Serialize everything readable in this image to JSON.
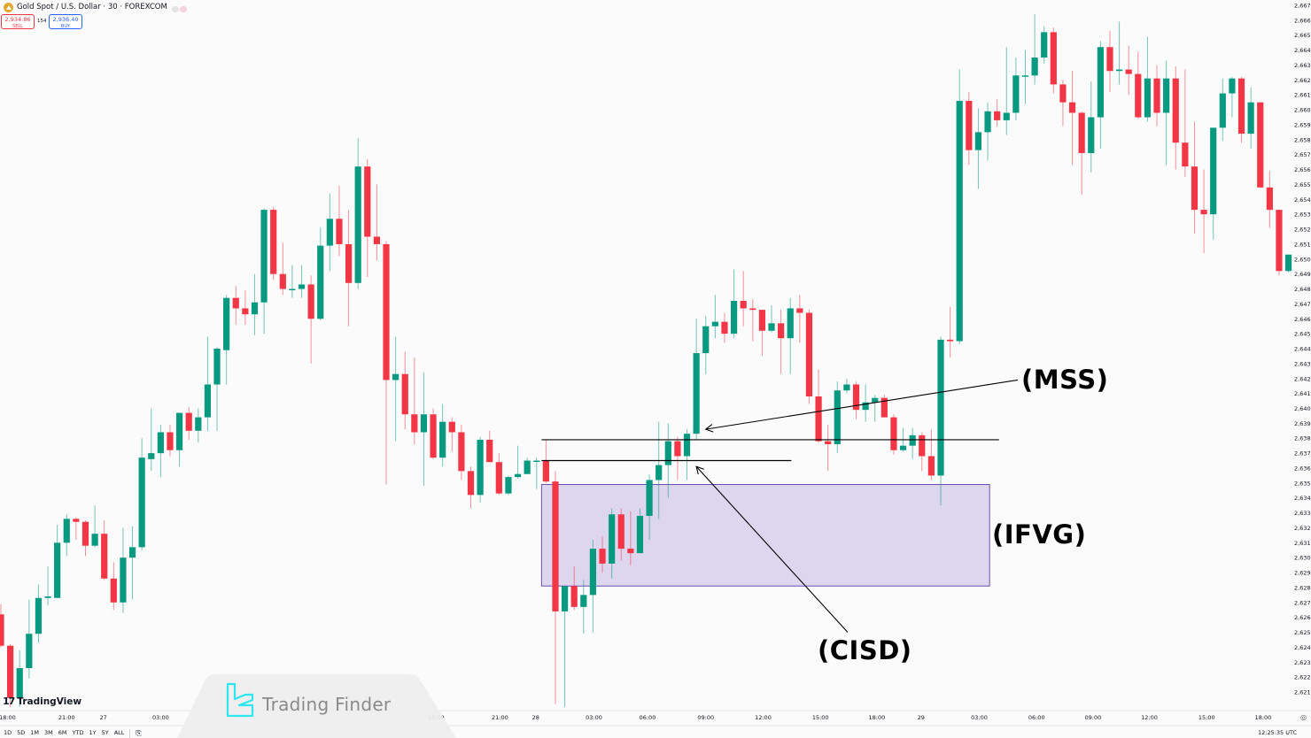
{
  "header": {
    "symbol_icon": "gold-coin-icon",
    "title": "Gold Spot / U.S. Dollar · 30 · FOREXCOM",
    "sell_price": "2,934.86",
    "sell_label": "SELL",
    "spread": "154",
    "buy_price": "2,936.40",
    "buy_label": "BUY"
  },
  "chart_data": {
    "type": "candlestick",
    "interval": "30",
    "colors": {
      "up": "#089981",
      "down": "#F23645",
      "zone_fill": "#dcd3ee",
      "zone_border": "#6a4fb0"
    },
    "ylim": [
      2620.6,
      2667.3
    ],
    "price_ticks": [
      "2,667.0",
      "2,666.0",
      "2,665.0",
      "2,664.0",
      "2,663.0",
      "2,662.0",
      "2,661.0",
      "2,660.0",
      "2,659.0",
      "2,658.0",
      "2,657.0",
      "2,656.0",
      "2,655.0",
      "2,654.0",
      "2,653.0",
      "2,652.0",
      "2,651.0",
      "2,650.0",
      "2,649.0",
      "2,648.0",
      "2,647.0",
      "2,646.0",
      "2,645.0",
      "2,644.0",
      "2,643.0",
      "2,642.0",
      "2,641.0",
      "2,640.0",
      "2,639.0",
      "2,638.0",
      "2,637.0",
      "2,636.0",
      "2,635.0",
      "2,634.0",
      "2,633.0",
      "2,632.0",
      "2,631.0",
      "2,630.0",
      "2,629.0",
      "2,628.0",
      "2,627.0",
      "2,626.0",
      "2,625.0",
      "2,624.0",
      "2,623.0",
      "2,622.0",
      "2,621.0"
    ],
    "time_ticks": [
      {
        "label": "18:00",
        "bar": 0.7
      },
      {
        "label": "21:00",
        "bar": 7
      },
      {
        "label": "27",
        "bar": 10.9
      },
      {
        "label": "03:00",
        "bar": 17
      },
      {
        "label": "18:00",
        "bar": 46.3
      },
      {
        "label": "21:00",
        "bar": 53.1
      },
      {
        "label": "28",
        "bar": 56.9
      },
      {
        "label": "03:00",
        "bar": 63.1
      },
      {
        "label": "06:00",
        "bar": 68.8
      },
      {
        "label": "09:00",
        "bar": 75
      },
      {
        "label": "12:00",
        "bar": 81.1
      },
      {
        "label": "15:00",
        "bar": 87.2
      },
      {
        "label": "18:00",
        "bar": 93.2
      },
      {
        "label": "29",
        "bar": 97.9
      },
      {
        "label": "03:00",
        "bar": 104.1
      },
      {
        "label": "06:00",
        "bar": 110.2
      },
      {
        "label": "09:00",
        "bar": 116.2
      },
      {
        "label": "12:00",
        "bar": 122.2
      },
      {
        "label": "15:00",
        "bar": 128.3
      },
      {
        "label": "18:00",
        "bar": 134.3
      }
    ],
    "ohlc_fields": [
      "open",
      "high",
      "low",
      "close"
    ],
    "candles": [
      [
        2626.2,
        2626.9,
        2624.0,
        2624.1
      ],
      [
        2624.1,
        2624.2,
        2620.0,
        2620.6
      ],
      [
        2620.6,
        2623.8,
        2620.0,
        2622.6
      ],
      [
        2622.6,
        2627.2,
        2621.9,
        2624.9
      ],
      [
        2624.9,
        2628.2,
        2624.3,
        2627.3
      ],
      [
        2627.3,
        2629.4,
        2626.8,
        2627.4
      ],
      [
        2627.3,
        2632.2,
        2627.3,
        2631.0
      ],
      [
        2631.0,
        2632.9,
        2630.1,
        2632.6
      ],
      [
        2632.6,
        2632.7,
        2631.2,
        2632.4
      ],
      [
        2632.4,
        2632.5,
        2630.1,
        2630.8
      ],
      [
        2630.8,
        2633.5,
        2630.7,
        2631.6
      ],
      [
        2631.6,
        2632.5,
        2628.5,
        2628.6
      ],
      [
        2628.6,
        2629.7,
        2626.5,
        2627.0
      ],
      [
        2627.0,
        2632.0,
        2626.3,
        2630.0
      ],
      [
        2630.0,
        2632.1,
        2627.2,
        2630.7
      ],
      [
        2630.7,
        2638.0,
        2630.5,
        2636.7
      ],
      [
        2636.6,
        2640.0,
        2635.8,
        2637.0
      ],
      [
        2637.0,
        2638.9,
        2635.4,
        2638.4
      ],
      [
        2638.4,
        2638.9,
        2636.8,
        2637.2
      ],
      [
        2637.2,
        2639.7,
        2636.1,
        2639.7
      ],
      [
        2639.7,
        2640.1,
        2637.9,
        2638.5
      ],
      [
        2638.5,
        2640.0,
        2637.7,
        2639.4
      ],
      [
        2639.4,
        2644.8,
        2638.5,
        2641.6
      ],
      [
        2641.6,
        2644.1,
        2638.5,
        2644.0
      ],
      [
        2643.9,
        2647.6,
        2641.6,
        2647.4
      ],
      [
        2647.4,
        2648.2,
        2645.6,
        2646.7
      ],
      [
        2646.7,
        2647.9,
        2645.6,
        2646.3
      ],
      [
        2646.3,
        2649.0,
        2644.9,
        2647.1
      ],
      [
        2647.1,
        2653.4,
        2645.0,
        2653.3
      ],
      [
        2653.3,
        2653.5,
        2648.6,
        2649.0
      ],
      [
        2649.0,
        2651.1,
        2647.6,
        2648.0
      ],
      [
        2648.0,
        2649.6,
        2647.4,
        2648.0
      ],
      [
        2648.0,
        2649.6,
        2647.4,
        2648.3
      ],
      [
        2648.3,
        2648.9,
        2643.0,
        2646.0
      ],
      [
        2646.0,
        2652.1,
        2645.9,
        2650.9
      ],
      [
        2650.9,
        2654.4,
        2649.2,
        2652.7
      ],
      [
        2652.7,
        2654.9,
        2650.2,
        2651.0
      ],
      [
        2651.0,
        2653.3,
        2645.5,
        2648.4
      ],
      [
        2648.4,
        2658.1,
        2648.0,
        2656.2
      ],
      [
        2656.2,
        2656.7,
        2648.8,
        2651.5
      ],
      [
        2651.5,
        2655.0,
        2649.9,
        2651.0
      ],
      [
        2651.0,
        2651.2,
        2634.9,
        2641.9
      ],
      [
        2641.9,
        2644.8,
        2637.8,
        2642.3
      ],
      [
        2642.3,
        2643.8,
        2638.6,
        2639.6
      ],
      [
        2639.6,
        2643.4,
        2637.6,
        2638.4
      ],
      [
        2638.4,
        2642.4,
        2634.8,
        2639.6
      ],
      [
        2639.6,
        2640.0,
        2636.6,
        2636.7
      ],
      [
        2636.7,
        2640.3,
        2636.1,
        2639.1
      ],
      [
        2639.1,
        2639.4,
        2637.1,
        2638.4
      ],
      [
        2638.4,
        2638.9,
        2635.2,
        2635.8
      ],
      [
        2635.8,
        2636.1,
        2633.3,
        2634.2
      ],
      [
        2634.2,
        2638.1,
        2633.7,
        2637.9
      ],
      [
        2637.9,
        2638.5,
        2636.4,
        2636.4
      ],
      [
        2636.4,
        2637.0,
        2634.2,
        2634.3
      ],
      [
        2634.3,
        2635.5,
        2634.2,
        2635.4
      ],
      [
        2635.4,
        2637.5,
        2635.3,
        2635.6
      ],
      [
        2635.6,
        2636.7,
        2635.6,
        2636.5
      ],
      [
        2636.5,
        2636.7,
        2634.6,
        2636.5
      ],
      [
        2636.5,
        2637.9,
        2635.0,
        2635.1
      ],
      [
        2635.1,
        2635.8,
        2620.2,
        2626.4
      ],
      [
        2626.4,
        2628.1,
        2620.0,
        2628.1
      ],
      [
        2628.1,
        2629.4,
        2626.5,
        2626.7
      ],
      [
        2626.7,
        2628.5,
        2624.9,
        2627.5
      ],
      [
        2627.5,
        2631.2,
        2625.0,
        2630.6
      ],
      [
        2630.6,
        2631.4,
        2629.0,
        2629.6
      ],
      [
        2629.6,
        2633.3,
        2628.6,
        2632.9
      ],
      [
        2632.9,
        2633.3,
        2629.8,
        2630.6
      ],
      [
        2630.6,
        2633.1,
        2629.5,
        2630.3
      ],
      [
        2630.3,
        2633.3,
        2630.3,
        2632.8
      ],
      [
        2632.8,
        2635.6,
        2631.2,
        2635.2
      ],
      [
        2635.2,
        2639.1,
        2632.6,
        2636.2
      ],
      [
        2636.2,
        2639.0,
        2634.0,
        2637.8
      ],
      [
        2637.8,
        2638.1,
        2635.2,
        2636.8
      ],
      [
        2636.8,
        2638.6,
        2635.2,
        2638.3
      ],
      [
        2638.3,
        2646.0,
        2637.9,
        2643.7
      ],
      [
        2643.7,
        2646.2,
        2642.3,
        2645.5
      ],
      [
        2645.5,
        2647.6,
        2644.7,
        2645.8
      ],
      [
        2645.8,
        2646.4,
        2644.4,
        2645.0
      ],
      [
        2645.0,
        2649.3,
        2644.7,
        2647.2
      ],
      [
        2647.2,
        2649.2,
        2645.5,
        2646.7
      ],
      [
        2646.7,
        2647.3,
        2644.5,
        2646.6
      ],
      [
        2646.6,
        2646.6,
        2643.5,
        2645.2
      ],
      [
        2645.2,
        2646.9,
        2645.1,
        2645.7
      ],
      [
        2645.7,
        2646.6,
        2642.3,
        2644.7
      ],
      [
        2644.7,
        2647.4,
        2642.3,
        2646.7
      ],
      [
        2646.7,
        2647.6,
        2644.4,
        2646.4
      ],
      [
        2646.4,
        2646.6,
        2640.3,
        2640.8
      ],
      [
        2640.8,
        2642.6,
        2637.7,
        2637.8
      ],
      [
        2637.8,
        2638.9,
        2635.8,
        2637.6
      ],
      [
        2637.6,
        2641.8,
        2637.0,
        2641.2
      ],
      [
        2641.2,
        2642.0,
        2641.0,
        2641.6
      ],
      [
        2641.6,
        2641.8,
        2639.3,
        2639.9
      ],
      [
        2639.9,
        2641.6,
        2639.1,
        2640.4
      ],
      [
        2640.4,
        2640.9,
        2639.1,
        2640.7
      ],
      [
        2640.7,
        2640.9,
        2639.4,
        2639.4
      ],
      [
        2639.4,
        2639.6,
        2636.9,
        2637.2
      ],
      [
        2637.2,
        2638.7,
        2637.1,
        2637.5
      ],
      [
        2637.5,
        2638.7,
        2636.6,
        2638.2
      ],
      [
        2638.2,
        2638.4,
        2635.8,
        2636.8
      ],
      [
        2636.8,
        2638.6,
        2635.2,
        2635.5
      ],
      [
        2635.5,
        2644.8,
        2633.5,
        2644.6
      ],
      [
        2644.6,
        2646.8,
        2643.4,
        2644.5
      ],
      [
        2644.5,
        2662.7,
        2644.3,
        2660.6
      ],
      [
        2660.6,
        2661.2,
        2656.3,
        2657.3
      ],
      [
        2657.3,
        2660.1,
        2654.7,
        2658.5
      ],
      [
        2658.5,
        2660.5,
        2656.6,
        2659.9
      ],
      [
        2659.9,
        2660.7,
        2658.9,
        2659.3
      ],
      [
        2659.3,
        2664.2,
        2658.3,
        2659.8
      ],
      [
        2659.8,
        2663.5,
        2659.3,
        2662.3
      ],
      [
        2662.3,
        2664.0,
        2660.4,
        2662.3
      ],
      [
        2662.3,
        2666.4,
        2661.7,
        2663.5
      ],
      [
        2663.5,
        2665.6,
        2663.1,
        2665.2
      ],
      [
        2665.2,
        2665.5,
        2661.1,
        2661.7
      ],
      [
        2661.7,
        2662.0,
        2658.9,
        2660.5
      ],
      [
        2660.5,
        2662.6,
        2656.3,
        2659.8
      ],
      [
        2659.8,
        2659.9,
        2654.3,
        2657.1
      ],
      [
        2657.1,
        2661.9,
        2655.8,
        2659.5
      ],
      [
        2659.5,
        2664.6,
        2657.4,
        2664.2
      ],
      [
        2664.2,
        2665.3,
        2661.2,
        2662.6
      ],
      [
        2662.6,
        2665.9,
        2661.7,
        2662.7
      ],
      [
        2662.7,
        2664.3,
        2661.0,
        2662.4
      ],
      [
        2662.4,
        2663.9,
        2659.4,
        2659.5
      ],
      [
        2659.5,
        2664.9,
        2659.2,
        2662.1
      ],
      [
        2662.1,
        2663.0,
        2658.9,
        2659.8
      ],
      [
        2659.8,
        2663.3,
        2656.3,
        2662.1
      ],
      [
        2662.1,
        2662.9,
        2656.0,
        2657.8
      ],
      [
        2657.8,
        2662.7,
        2655.5,
        2656.2
      ],
      [
        2656.2,
        2659.2,
        2651.7,
        2653.3
      ],
      [
        2653.3,
        2656.0,
        2650.4,
        2653.0
      ],
      [
        2653.0,
        2658.8,
        2651.3,
        2658.8
      ],
      [
        2658.8,
        2662.1,
        2657.9,
        2661.1
      ],
      [
        2661.1,
        2662.2,
        2659.5,
        2662.1
      ],
      [
        2662.1,
        2662.2,
        2657.8,
        2658.4
      ],
      [
        2658.4,
        2661.5,
        2657.4,
        2660.5
      ],
      [
        2660.5,
        2660.5,
        2654.8,
        2654.8
      ],
      [
        2654.8,
        2655.9,
        2652.1,
        2653.3
      ],
      [
        2653.3,
        2653.3,
        2648.9,
        2649.2
      ],
      [
        2649.2,
        2650.3,
        2649.1,
        2650.3
      ]
    ],
    "annotations": {
      "ifvg_zone": {
        "label": "(IFVG)",
        "top": 2634.9,
        "bottom": 2628.1,
        "from_bar": 58,
        "to_bar": 105.2
      },
      "mss_level": {
        "price": 2637.9,
        "from_bar": 58,
        "to_bar": 106.2
      },
      "cisd_level": {
        "price": 2636.5,
        "from_bar": 58,
        "to_bar": 84.1
      },
      "mss_arrow": {
        "label": "(MSS)",
        "from_bar": 108.2,
        "from_price": 2641.9,
        "to_bar": 75.0,
        "to_price": 2638.6
      },
      "cisd_arrow": {
        "label": "(CISD)",
        "from_bar": 90.1,
        "from_price": 2625.0,
        "to_bar": 74.0,
        "to_price": 2636.1
      }
    }
  },
  "footer": {
    "ranges": [
      "1D",
      "5D",
      "1M",
      "3M",
      "6M",
      "YTD",
      "1Y",
      "5Y",
      "ALL"
    ],
    "goto_icon": "calendar-goto-icon",
    "clock": "12:25:35 UTC",
    "settings_icon": "axis-settings-icon"
  },
  "branding": {
    "tradingview": "TradingView",
    "watermark": "Trading Finder"
  }
}
